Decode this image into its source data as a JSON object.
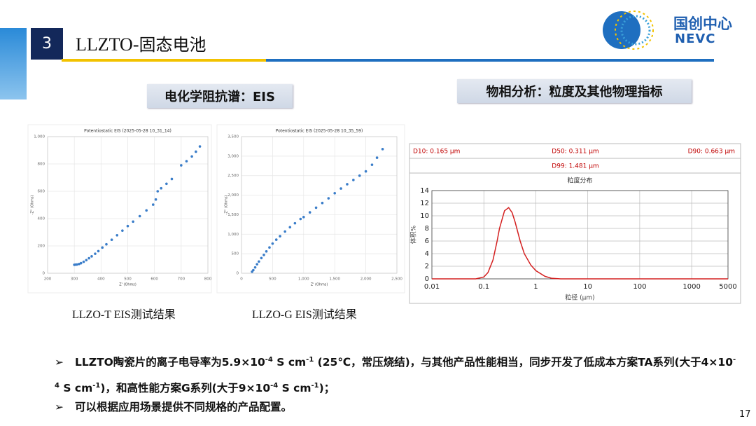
{
  "header": {
    "number": "3",
    "title_latin": "LLZTO-",
    "title_cjk": "固态电池",
    "logo_cn": "国创中心",
    "logo_en": "NEVC"
  },
  "sections": [
    "电化学阻抗谱：EIS",
    "物相分析：粒度及其他物理指标"
  ],
  "chart_data": [
    {
      "type": "scatter",
      "title": "Potentiostatic EIS (2025-05-28 10_31_14)",
      "x_label": "Z' (Ohms)",
      "y_label": "-Z'' (Ohms)",
      "color": "#3a7dc9",
      "x": [
        300,
        305,
        310,
        318,
        325,
        335,
        345,
        355,
        365,
        378,
        390,
        405,
        420,
        440,
        460,
        480,
        500,
        520,
        545,
        570,
        595,
        605,
        612,
        625,
        645,
        665,
        700,
        720,
        740,
        755,
        770
      ],
      "values": [
        62,
        63,
        64,
        68,
        74,
        84,
        96,
        110,
        124,
        143,
        162,
        188,
        212,
        245,
        278,
        312,
        345,
        378,
        418,
        460,
        502,
        540,
        600,
        622,
        655,
        690,
        790,
        820,
        855,
        890,
        928
      ],
      "xlim": [
        200,
        800
      ],
      "xticks": [
        200,
        300,
        400,
        500,
        600,
        700,
        800
      ],
      "ylim": [
        0,
        1000
      ],
      "yticks": [
        0,
        200,
        400,
        600,
        800,
        {
          "value": 1000,
          "label": "1,000"
        }
      ],
      "grid": true
    },
    {
      "type": "scatter",
      "title": "Potentiostatic EIS (2025-05-28 10_35_59)",
      "x_label": "Z' (Ohms)",
      "y_label": "-Z'' (Ohms)",
      "color": "#3a7dc9",
      "x": [
        170,
        190,
        220,
        250,
        280,
        320,
        360,
        400,
        450,
        500,
        560,
        620,
        700,
        780,
        860,
        950,
        1000,
        1100,
        1200,
        1300,
        1400,
        1500,
        1600,
        1700,
        1800,
        1900,
        2000,
        2100,
        2180,
        2270
      ],
      "values": [
        40,
        80,
        150,
        230,
        300,
        390,
        470,
        560,
        660,
        760,
        860,
        950,
        1070,
        1180,
        1280,
        1390,
        1440,
        1560,
        1680,
        1800,
        1920,
        2050,
        2170,
        2280,
        2390,
        2500,
        2610,
        2780,
        2960,
        3180
      ],
      "xlim": [
        0,
        2500
      ],
      "xticks": [
        0,
        500,
        {
          "value": 1000,
          "label": "1,000"
        },
        {
          "value": 1500,
          "label": "1,500"
        },
        {
          "value": 2000,
          "label": "2,000"
        },
        {
          "value": 2500,
          "label": "2,500"
        }
      ],
      "ylim": [
        0,
        3500
      ],
      "yticks": [
        0,
        500,
        {
          "value": 1000,
          "label": "1,000"
        },
        {
          "value": 1500,
          "label": "1,500"
        },
        {
          "value": 2000,
          "label": "2,000"
        },
        {
          "value": 2500,
          "label": "2,500"
        },
        {
          "value": 3000,
          "label": "3,000"
        },
        {
          "value": 3500,
          "label": "3,500"
        }
      ],
      "grid": true
    },
    {
      "type": "line",
      "title": "粒度分布",
      "x_label": "粒径 (μm)",
      "y_label": "体积%",
      "color": "#d42020",
      "stats": [
        "D10: 0.165 μm",
        "D50: 0.311 μm",
        "D90: 0.663 μm",
        "D99: 1.481 μm"
      ],
      "x_scale": "log",
      "x": [
        0.01,
        0.07,
        0.1,
        0.12,
        0.15,
        0.18,
        0.2,
        0.25,
        0.3,
        0.35,
        0.4,
        0.5,
        0.6,
        0.8,
        1,
        1.5,
        2,
        3,
        10,
        5000
      ],
      "values": [
        0,
        0,
        0.3,
        1,
        3,
        6,
        8,
        10.8,
        11.3,
        10.5,
        9,
        6,
        4,
        2.2,
        1.3,
        0.4,
        0.1,
        0,
        0,
        0
      ],
      "xlim": [
        0.01,
        5000
      ],
      "xticks": [
        0.01,
        0.1,
        1,
        10,
        100,
        1000,
        5000
      ],
      "ylim": [
        0,
        14
      ],
      "yticks": [
        0,
        2,
        4,
        6,
        8,
        10,
        12,
        14
      ],
      "grid": true
    }
  ],
  "captions": [
    "LLZO-T EIS测试结果",
    "LLZO-G EIS测试结果"
  ],
  "bullets": [
    {
      "marker": "➢",
      "parts": [
        {
          "text": "LLZTO陶瓷片的离子电导率为5.9×10"
        },
        {
          "sup": "-4"
        },
        {
          "text": " S cm"
        },
        {
          "sup": "-1"
        },
        {
          "text": " (25℃，常压烧结)，与其他产品性能相当，同步开发了低成本方案TA系列(大于4×10"
        },
        {
          "sup": "-4"
        },
        {
          "text": " S cm"
        },
        {
          "sup": "-1"
        },
        {
          "text": ")，和高性能方案G系列(大于9×10"
        },
        {
          "sup": "-4"
        },
        {
          "text": " S cm"
        },
        {
          "sup": "-1"
        },
        {
          "text": ")；"
        }
      ]
    },
    {
      "marker": "➢",
      "parts": [
        {
          "text": "可以根据应用场景提供不同规格的产品配置。"
        }
      ]
    }
  ],
  "page_number": "17"
}
